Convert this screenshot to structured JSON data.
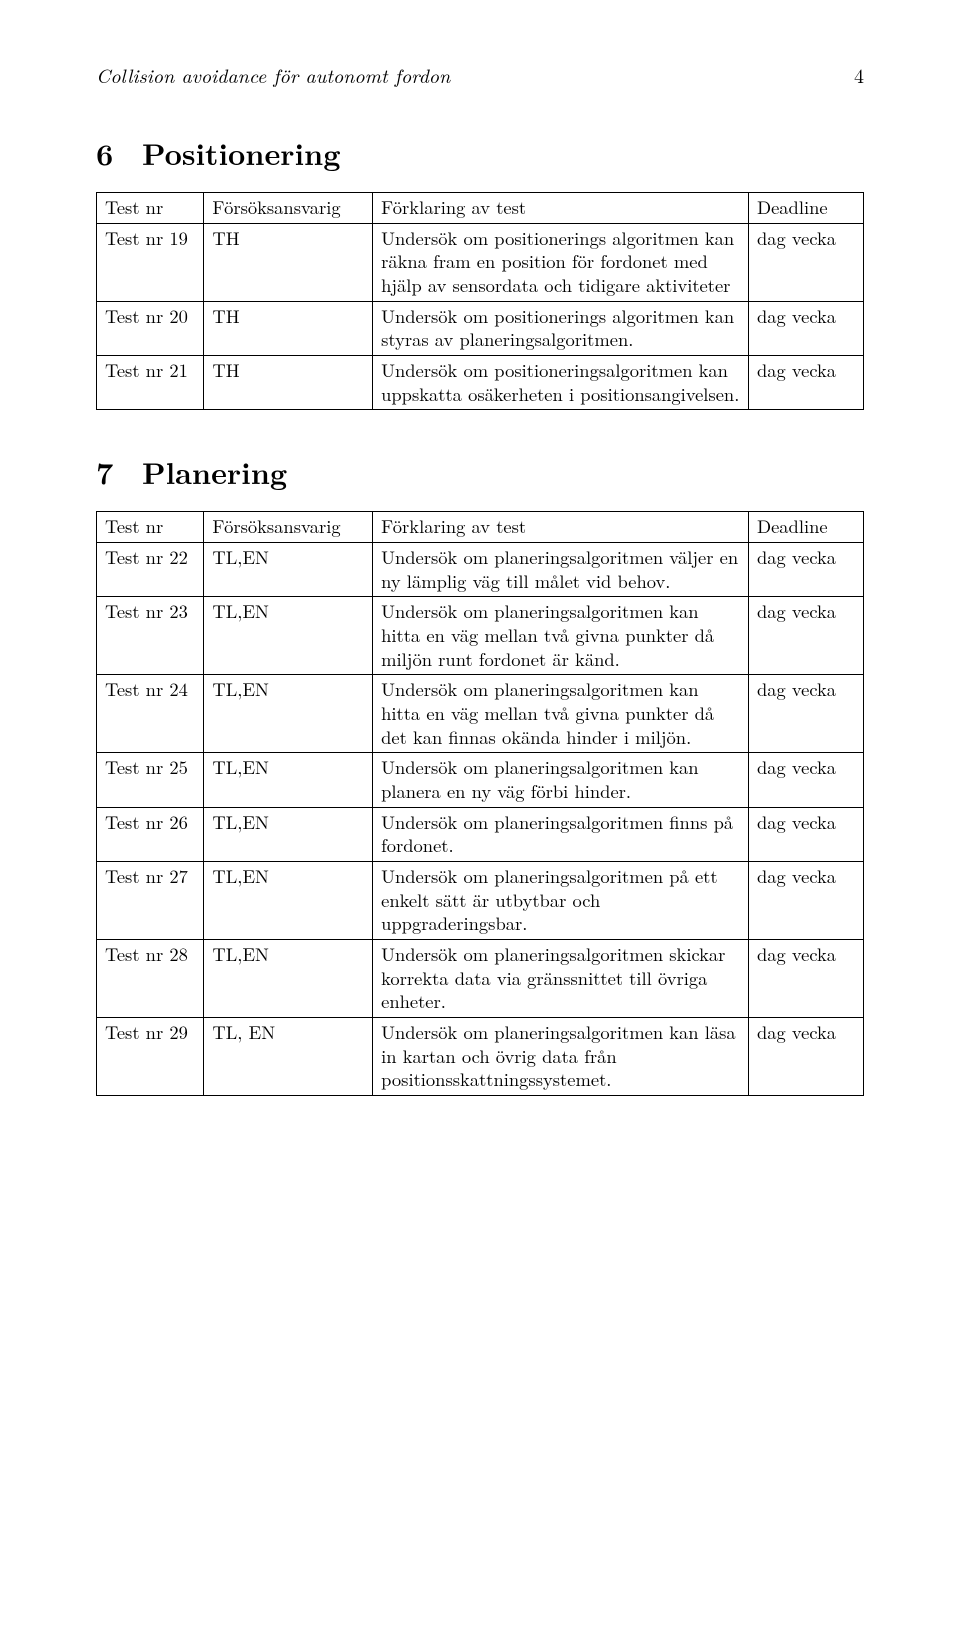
{
  "header": {
    "title": "Collision avoidance för autonomt fordon",
    "page_number": "4"
  },
  "sections": [
    {
      "number": "6",
      "title": "Positionering"
    },
    {
      "number": "7",
      "title": "Planering"
    }
  ],
  "table_headers": {
    "testnr": "Test nr",
    "ansvarig": "Försöksansvarig",
    "forklaring": "Förklaring av test",
    "deadline": "Deadline"
  },
  "table6": [
    {
      "nr": "Test nr 19",
      "who": "TH",
      "desc": "Undersök om positionerings algoritmen kan räkna fram en position för fordonet med hjälp av sensordata och tidigare aktiviteter",
      "dl": "dag vecka"
    },
    {
      "nr": "Test nr 20",
      "who": "TH",
      "desc": "Undersök om positionerings algoritmen kan styras av planeringsalgoritmen.",
      "dl": "dag vecka"
    },
    {
      "nr": "Test nr 21",
      "who": "TH",
      "desc": "Undersök om positioneringsalgoritmen kan uppskatta osäkerheten i positionsangivelsen.",
      "dl": "dag vecka"
    }
  ],
  "table7": [
    {
      "nr": "Test nr 22",
      "who": "TL,EN",
      "desc": "Undersök om planeringsalgoritmen väljer en ny lämplig väg till målet vid behov.",
      "dl": "dag vecka"
    },
    {
      "nr": "Test nr 23",
      "who": "TL,EN",
      "desc": "Undersök om planeringsalgoritmen kan hitta en väg mellan två givna punkter då miljön runt fordonet är känd.",
      "dl": "dag vecka"
    },
    {
      "nr": "Test nr 24",
      "who": "TL,EN",
      "desc": "Undersök om planeringsalgoritmen kan hitta en väg mellan två givna punkter då det kan finnas okända hinder i miljön.",
      "dl": "dag vecka"
    },
    {
      "nr": "Test nr 25",
      "who": "TL,EN",
      "desc": "Undersök om planeringsalgoritmen kan planera en ny väg förbi hinder.",
      "dl": "dag vecka"
    },
    {
      "nr": "Test nr 26",
      "who": "TL,EN",
      "desc": "Undersök om planeringsalgoritmen finns på fordonet.",
      "dl": "dag vecka"
    },
    {
      "nr": "Test nr 27",
      "who": "TL,EN",
      "desc": "Undersök om planeringsalgoritmen på ett enkelt sätt är utbytbar och uppgraderingsbar.",
      "dl": "dag vecka"
    },
    {
      "nr": "Test nr 28",
      "who": "TL,EN",
      "desc": "Undersök om planeringsalgoritmen skickar korrekta data via gränssnittet till övriga enheter.",
      "dl": "dag vecka"
    },
    {
      "nr": "Test nr 29",
      "who": "TL, EN",
      "desc": "Undersök om planeringsalgoritmen kan läsa in kartan och övrig data från positionsskattningssystemet.",
      "dl": "dag vecka"
    }
  ]
}
